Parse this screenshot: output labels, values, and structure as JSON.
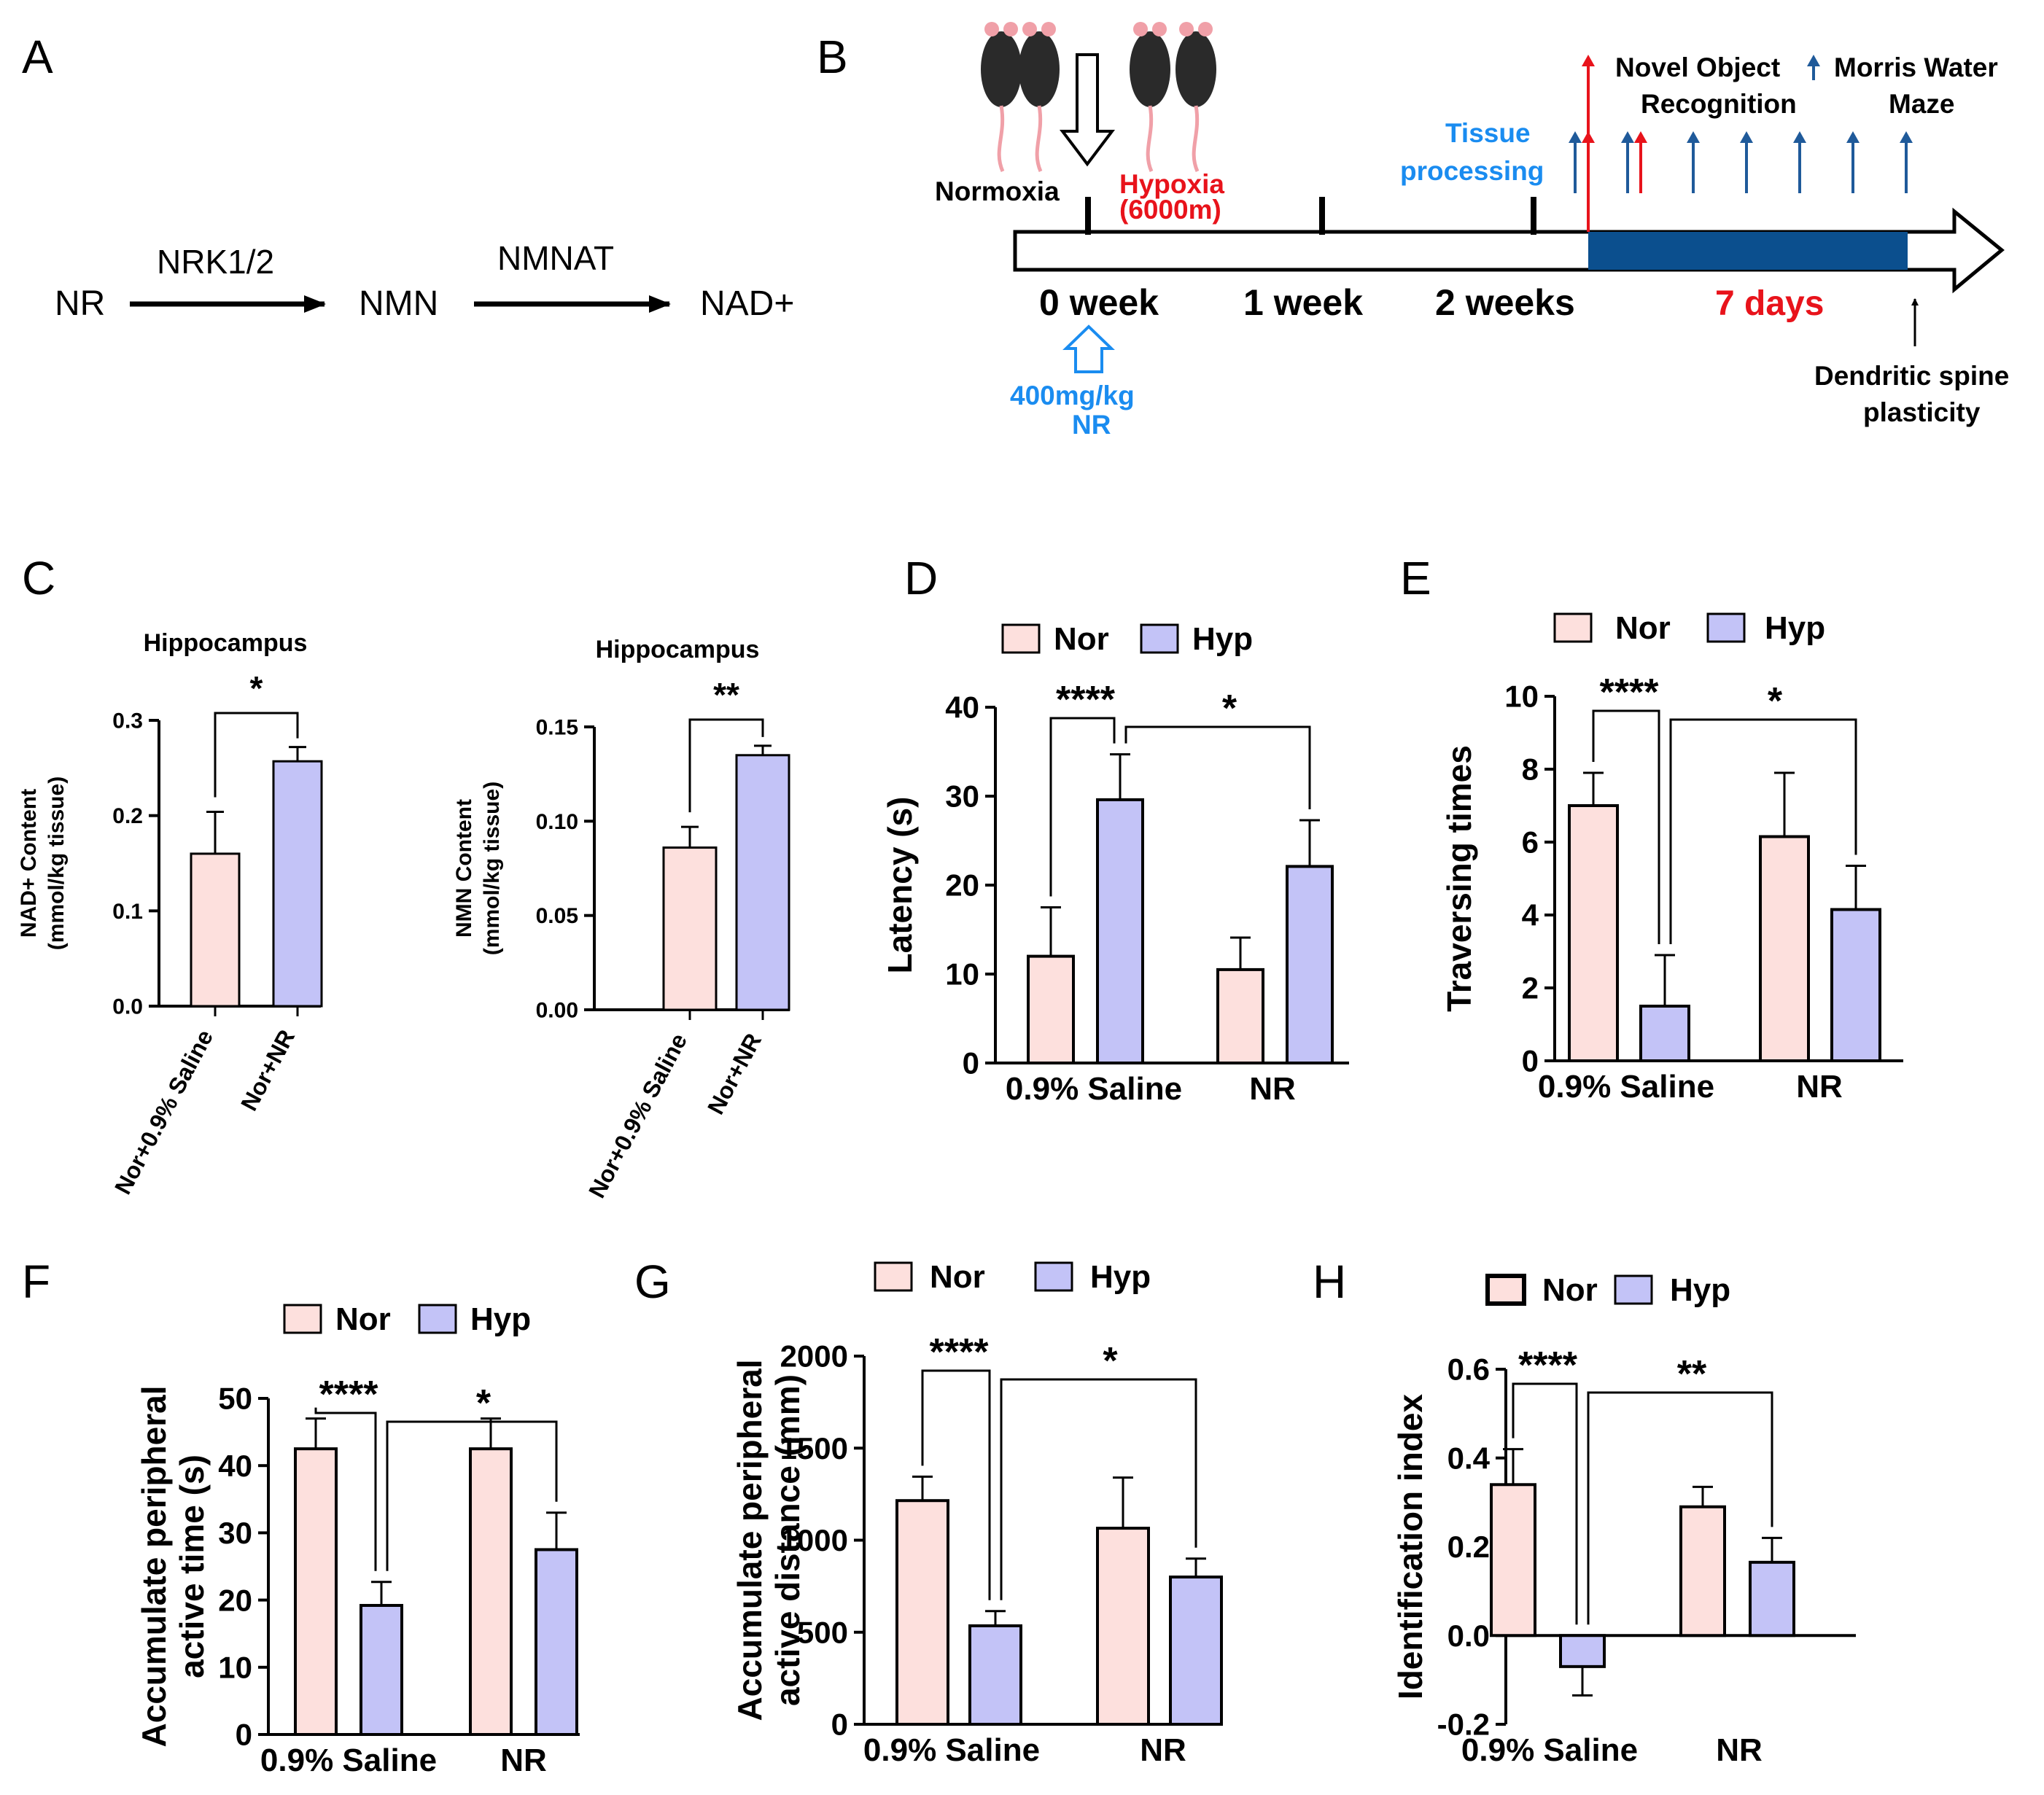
{
  "panels": {
    "A": "A",
    "B": "B",
    "C": "C",
    "D": "D",
    "E": "E",
    "F": "F",
    "G": "G",
    "H": "H"
  },
  "colors": {
    "nor": "#fde0dd",
    "hyp": "#c3c3f7",
    "timeline": "#0b4f8e",
    "red": "#e8131b",
    "blue": "#1a8cf0",
    "arrow_blue": "#1f5a9a"
  },
  "pathway": {
    "nodes": [
      "NR",
      "NMN",
      "NAD+"
    ],
    "enzymes": [
      "NRK1/2",
      "NMNAT"
    ]
  },
  "timeline": {
    "normoxia": "Normoxia",
    "hypoxia_line1": "Hypoxia",
    "hypoxia_line2": "(6000m)",
    "week0": "0 week",
    "week1": "1 week",
    "week2": "2 weeks",
    "days": "7 days",
    "dose_line1": "400mg/kg",
    "dose_line2": "NR",
    "tissue_line1": "Tissue",
    "tissue_line2": "processing",
    "nor_line1": "Novel Object",
    "nor_line2": "Recognition",
    "mwm_line1": "Morris Water",
    "mwm_line2": "Maze",
    "spine_line1": "Dendritic spine",
    "spine_line2": "plasticity"
  },
  "legend": {
    "nor": "Nor",
    "hyp": "Hyp"
  },
  "chart_data": [
    {
      "id": "C1",
      "type": "bar",
      "title": "Hippocampus",
      "ylabel_line1": "NAD+ Content",
      "ylabel_line2": "(mmol/kg tissue)",
      "categories": [
        "Nor+0.9% Saline",
        "Nor+NR"
      ],
      "values": [
        0.16,
        0.257
      ],
      "errors": [
        0.044,
        0.015
      ],
      "ylim": [
        0,
        0.3
      ],
      "yticks": [
        "0.0",
        "0.1",
        "0.2",
        "0.3"
      ],
      "significance": [
        "*"
      ]
    },
    {
      "id": "C2",
      "type": "bar",
      "title": "Hippocampus",
      "ylabel_line1": "NMN Content",
      "ylabel_line2": "(mmol/kg tissue)",
      "categories": [
        "Nor+0.9% Saline",
        "Nor+NR"
      ],
      "values": [
        0.086,
        0.135
      ],
      "errors": [
        0.011,
        0.005
      ],
      "ylim": [
        0,
        0.15
      ],
      "yticks": [
        "0.00",
        "0.05",
        "0.10",
        "0.15"
      ],
      "significance": [
        "**"
      ]
    },
    {
      "id": "D",
      "type": "bar",
      "ylabel": "Latency (s)",
      "categories": [
        "0.9% Saline",
        "NR"
      ],
      "series": [
        {
          "name": "Nor",
          "values": [
            12,
            10.5
          ],
          "errors": [
            5.5,
            3.6
          ]
        },
        {
          "name": "Hyp",
          "values": [
            29.6,
            22.1
          ],
          "errors": [
            5.1,
            5.2
          ]
        }
      ],
      "ylim": [
        0,
        40
      ],
      "yticks": [
        "0",
        "10",
        "20",
        "30",
        "40"
      ],
      "significance": [
        "****",
        "*"
      ]
    },
    {
      "id": "E",
      "type": "bar",
      "ylabel": "Traversing times",
      "categories": [
        "0.9% Saline",
        "NR"
      ],
      "series": [
        {
          "name": "Nor",
          "values": [
            7.0,
            6.15
          ],
          "errors": [
            0.9,
            1.75
          ]
        },
        {
          "name": "Hyp",
          "values": [
            1.5,
            4.15
          ],
          "errors": [
            1.4,
            1.2
          ]
        }
      ],
      "ylim": [
        0,
        10
      ],
      "yticks": [
        "0",
        "2",
        "4",
        "6",
        "8",
        "10"
      ],
      "significance": [
        "****",
        "*"
      ]
    },
    {
      "id": "F",
      "type": "bar",
      "ylabel_line1": "Accumulate peripheral",
      "ylabel_line2": "active time (s)",
      "categories": [
        "0.9% Saline",
        "NR"
      ],
      "series": [
        {
          "name": "Nor",
          "values": [
            42.5,
            42.5
          ],
          "errors": [
            4.5,
            4.5
          ]
        },
        {
          "name": "Hyp",
          "values": [
            19.2,
            27.5
          ],
          "errors": [
            3.5,
            5.5
          ]
        }
      ],
      "ylim": [
        0,
        50
      ],
      "yticks": [
        "0",
        "10",
        "20",
        "30",
        "40",
        "50"
      ],
      "significance": [
        "****",
        "*"
      ]
    },
    {
      "id": "G",
      "type": "bar",
      "ylabel_line1": "Accumulate peripheral",
      "ylabel_line2": "active distance (mm)",
      "categories": [
        "0.9% Saline",
        "NR"
      ],
      "series": [
        {
          "name": "Nor",
          "values": [
            1215,
            1065
          ],
          "errors": [
            130,
            275
          ]
        },
        {
          "name": "Hyp",
          "values": [
            535,
            800
          ],
          "errors": [
            80,
            100
          ]
        }
      ],
      "ylim": [
        0,
        2000
      ],
      "yticks": [
        "0",
        "500",
        "1000",
        "1500",
        "2000"
      ],
      "significance": [
        "****",
        "*"
      ]
    },
    {
      "id": "H",
      "type": "bar",
      "ylabel": "Identification index",
      "categories": [
        "0.9% Saline",
        "NR"
      ],
      "series": [
        {
          "name": "Nor",
          "values": [
            0.34,
            0.29
          ],
          "errors": [
            0.08,
            0.045
          ]
        },
        {
          "name": "Hyp",
          "values": [
            -0.07,
            0.165
          ],
          "errors": [
            0.065,
            0.055
          ]
        }
      ],
      "ylim": [
        -0.2,
        0.6
      ],
      "yticks": [
        "-0.2",
        "0.0",
        "0.2",
        "0.4",
        "0.6"
      ],
      "significance": [
        "****",
        "**"
      ]
    }
  ]
}
